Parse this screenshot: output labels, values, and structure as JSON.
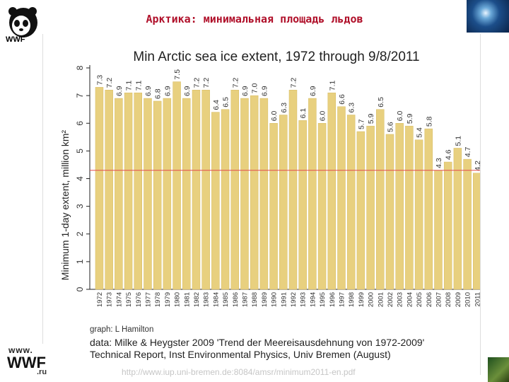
{
  "slide": {
    "title": "Арктика: минимальная площадь льдов",
    "logo_text": "WWF",
    "left_www": "www.",
    "left_brand": "WWF",
    "left_suffix": ".ru",
    "source_url": "http://www.iup.uni-bremen.de:8084/amsr/minimum2011-en.pdf",
    "colors": {
      "bar": "#e8d07f",
      "bar_stroke": "#d6bb60",
      "ref_line": "#e24c4c",
      "axis": "#222222",
      "label": "#333333",
      "title_red": "#b0102a"
    }
  },
  "chart_data": {
    "type": "bar",
    "title": "Min Arctic sea ice extent, 1972 through 9/8/2011",
    "ylabel": "Minimum 1-day extent, million km²",
    "xlabel": "",
    "ylim": [
      0,
      8
    ],
    "yticks": [
      0,
      1,
      2,
      3,
      4,
      5,
      6,
      7,
      8
    ],
    "reference_line": 4.3,
    "categories": [
      "1972",
      "1973",
      "1974",
      "1975",
      "1976",
      "1977",
      "1978",
      "1979",
      "1980",
      "1981",
      "1982",
      "1983",
      "1984",
      "1985",
      "1986",
      "1987",
      "1988",
      "1989",
      "1990",
      "1991",
      "1992",
      "1993",
      "1994",
      "1995",
      "1996",
      "1997",
      "1998",
      "1999",
      "2000",
      "2001",
      "2002",
      "2003",
      "2004",
      "2005",
      "2006",
      "2007",
      "2008",
      "2009",
      "2010",
      "2011"
    ],
    "values": [
      7.3,
      7.2,
      6.9,
      7.1,
      7.1,
      6.9,
      6.8,
      6.9,
      7.5,
      6.9,
      7.2,
      7.2,
      6.4,
      6.5,
      7.2,
      6.9,
      7.0,
      6.9,
      6.0,
      6.3,
      7.2,
      6.1,
      6.9,
      6.0,
      7.1,
      6.6,
      6.3,
      5.7,
      5.9,
      6.5,
      5.6,
      6.0,
      5.9,
      5.4,
      5.8,
      4.3,
      4.6,
      5.1,
      4.7,
      4.2
    ],
    "data_labels": [
      "7.3",
      "7.2",
      "6.9",
      "7.1",
      "7.1",
      "6.9",
      "6.8",
      "6.9",
      "7.5",
      "6.9",
      "7.2",
      "7.2",
      "6.4",
      "6.5",
      "7.2",
      "6.9",
      "7.0",
      "6.9",
      "6.0",
      "6.3",
      "7.2",
      "6.1",
      "6.9",
      "6.0",
      "7.1",
      "6.6",
      "6.3",
      "5.7",
      "5.9",
      "6.5",
      "5.6",
      "6.0",
      "5.9",
      "5.4",
      "5.8",
      "4.3",
      "4.6",
      "5.1",
      "4.7",
      "4.2"
    ],
    "grid": false,
    "legend": "none",
    "annotations": {
      "graph_credit": "graph: L Hamilton",
      "source_line1": "data: Milke & Heygster 2009 'Trend der Meereisausdehnung von 1972-2009'",
      "source_line2": "Technical Report, Inst Environmental Physics, Univ Bremen (August)"
    }
  }
}
